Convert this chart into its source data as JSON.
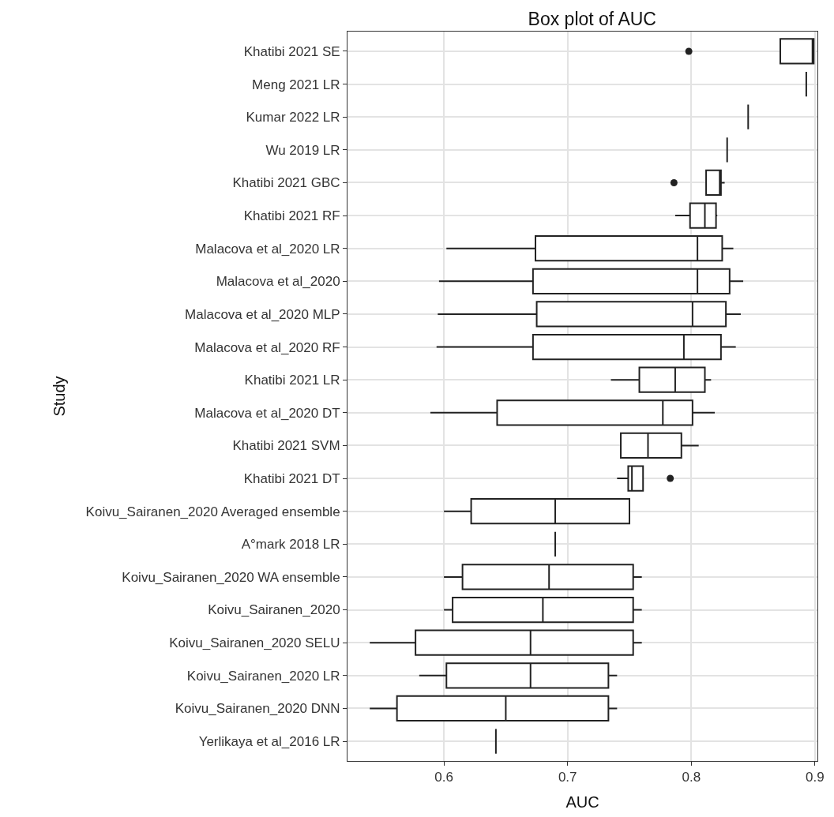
{
  "chart_data": {
    "type": "box",
    "orientation": "horizontal",
    "title": "Box plot of AUC",
    "xlabel": "AUC",
    "ylabel": "Study",
    "categories": [
      "Khatibi 2021 SE",
      "Meng 2021 LR",
      "Kumar 2022 LR",
      "Wu 2019 LR",
      "Khatibi 2021 GBC",
      "Khatibi 2021 RF",
      "Malacova et al_2020 LR",
      "Malacova et al_2020",
      "Malacova et al_2020 MLP",
      "Malacova et al_2020 RF",
      "Khatibi 2021 LR",
      "Malacova et al_2020 DT",
      "Khatibi 2021 SVM",
      "Khatibi 2021 DT",
      "Koivu_Sairanen_2020 Averaged ensemble",
      "A°mark 2018 LR",
      "Koivu_Sairanen_2020 WA ensemble",
      "Koivu_Sairanen_2020",
      "Koivu_Sairanen_2020 SELU",
      "Koivu_Sairanen_2020 LR",
      "Koivu_Sairanen_2020 DNN",
      "Yerlikaya et al_2016 LR"
    ],
    "boxes": [
      {
        "low": 0.872,
        "q1": 0.872,
        "median": 0.898,
        "q3": 0.899,
        "high": 0.899,
        "outliers": [
          0.798
        ]
      },
      {
        "low": 0.893,
        "q1": 0.893,
        "median": 0.893,
        "q3": 0.893,
        "high": 0.893
      },
      {
        "low": 0.846,
        "q1": 0.846,
        "median": 0.846,
        "q3": 0.846,
        "high": 0.846
      },
      {
        "low": 0.829,
        "q1": 0.829,
        "median": 0.829,
        "q3": 0.829,
        "high": 0.829
      },
      {
        "low": 0.812,
        "q1": 0.812,
        "median": 0.823,
        "q3": 0.824,
        "high": 0.827,
        "outliers": [
          0.786
        ]
      },
      {
        "low": 0.787,
        "q1": 0.799,
        "median": 0.811,
        "q3": 0.82,
        "high": 0.821
      },
      {
        "low": 0.602,
        "q1": 0.674,
        "median": 0.805,
        "q3": 0.825,
        "high": 0.834
      },
      {
        "low": 0.596,
        "q1": 0.672,
        "median": 0.805,
        "q3": 0.831,
        "high": 0.842
      },
      {
        "low": 0.595,
        "q1": 0.675,
        "median": 0.801,
        "q3": 0.828,
        "high": 0.84
      },
      {
        "low": 0.594,
        "q1": 0.672,
        "median": 0.794,
        "q3": 0.824,
        "high": 0.836
      },
      {
        "low": 0.735,
        "q1": 0.758,
        "median": 0.787,
        "q3": 0.811,
        "high": 0.816
      },
      {
        "low": 0.589,
        "q1": 0.643,
        "median": 0.777,
        "q3": 0.801,
        "high": 0.819
      },
      {
        "low": 0.743,
        "q1": 0.743,
        "median": 0.765,
        "q3": 0.792,
        "high": 0.806
      },
      {
        "low": 0.74,
        "q1": 0.749,
        "median": 0.752,
        "q3": 0.761,
        "high": 0.761,
        "outliers": [
          0.783
        ]
      },
      {
        "low": 0.6,
        "q1": 0.622,
        "median": 0.69,
        "q3": 0.75,
        "high": 0.75
      },
      {
        "low": 0.69,
        "q1": 0.69,
        "median": 0.69,
        "q3": 0.69,
        "high": 0.69
      },
      {
        "low": 0.6,
        "q1": 0.615,
        "median": 0.685,
        "q3": 0.753,
        "high": 0.76
      },
      {
        "low": 0.6,
        "q1": 0.607,
        "median": 0.68,
        "q3": 0.753,
        "high": 0.76
      },
      {
        "low": 0.54,
        "q1": 0.577,
        "median": 0.67,
        "q3": 0.753,
        "high": 0.76
      },
      {
        "low": 0.58,
        "q1": 0.602,
        "median": 0.67,
        "q3": 0.733,
        "high": 0.74
      },
      {
        "low": 0.54,
        "q1": 0.562,
        "median": 0.65,
        "q3": 0.733,
        "high": 0.74
      },
      {
        "low": 0.642,
        "q1": 0.642,
        "median": 0.642,
        "q3": 0.642,
        "high": 0.642
      }
    ],
    "color": "#222222",
    "xlim": [
      0.522,
      0.902
    ],
    "xticks": [
      0.6,
      0.7,
      0.8,
      0.9
    ],
    "grid": true
  }
}
